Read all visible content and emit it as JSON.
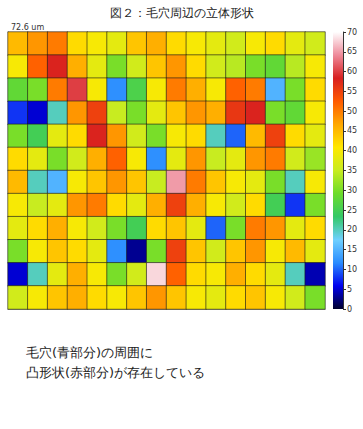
{
  "chart_data": {
    "type": "heatmap",
    "title": "図２：毛穴周辺の立体形状",
    "corner_label": "72.6 um",
    "caption": [
      "毛穴(青部分)の周囲に",
      "凸形状(赤部分)が存在している"
    ],
    "cells": [
      [
        45,
        48,
        50,
        42,
        40,
        38,
        44,
        46,
        42,
        40,
        38,
        36,
        40,
        42,
        38,
        36
      ],
      [
        40,
        52,
        58,
        46,
        38,
        30,
        36,
        44,
        48,
        42,
        36,
        34,
        30,
        28,
        34,
        40
      ],
      [
        28,
        30,
        50,
        60,
        40,
        12,
        26,
        40,
        50,
        46,
        40,
        52,
        50,
        15,
        30,
        42
      ],
      [
        8,
        5,
        20,
        48,
        55,
        35,
        30,
        38,
        44,
        48,
        46,
        56,
        58,
        30,
        28,
        40
      ],
      [
        30,
        25,
        38,
        42,
        58,
        48,
        36,
        30,
        40,
        42,
        20,
        10,
        45,
        55,
        42,
        38
      ],
      [
        42,
        38,
        30,
        36,
        46,
        52,
        40,
        12,
        38,
        48,
        35,
        38,
        48,
        50,
        36,
        32
      ],
      [
        45,
        20,
        15,
        40,
        44,
        48,
        44,
        35,
        65,
        50,
        44,
        40,
        38,
        30,
        20,
        40
      ],
      [
        40,
        35,
        38,
        48,
        50,
        42,
        38,
        46,
        55,
        46,
        40,
        36,
        42,
        25,
        8,
        30
      ],
      [
        38,
        42,
        46,
        40,
        36,
        30,
        25,
        42,
        44,
        38,
        10,
        30,
        50,
        48,
        38,
        42
      ],
      [
        30,
        40,
        44,
        42,
        38,
        12,
        3,
        30,
        55,
        44,
        36,
        44,
        48,
        40,
        45,
        38
      ],
      [
        5,
        20,
        38,
        46,
        40,
        30,
        36,
        68,
        52,
        42,
        40,
        46,
        42,
        38,
        20,
        4
      ],
      [
        36,
        40,
        44,
        46,
        42,
        40,
        44,
        48,
        44,
        40,
        38,
        42,
        44,
        40,
        36,
        30
      ]
    ],
    "zlim": [
      0,
      70
    ],
    "zticks": [
      0,
      5,
      10,
      15,
      20,
      25,
      30,
      35,
      40,
      45,
      50,
      55,
      60,
      65,
      70
    ],
    "tick_labels": false
  }
}
